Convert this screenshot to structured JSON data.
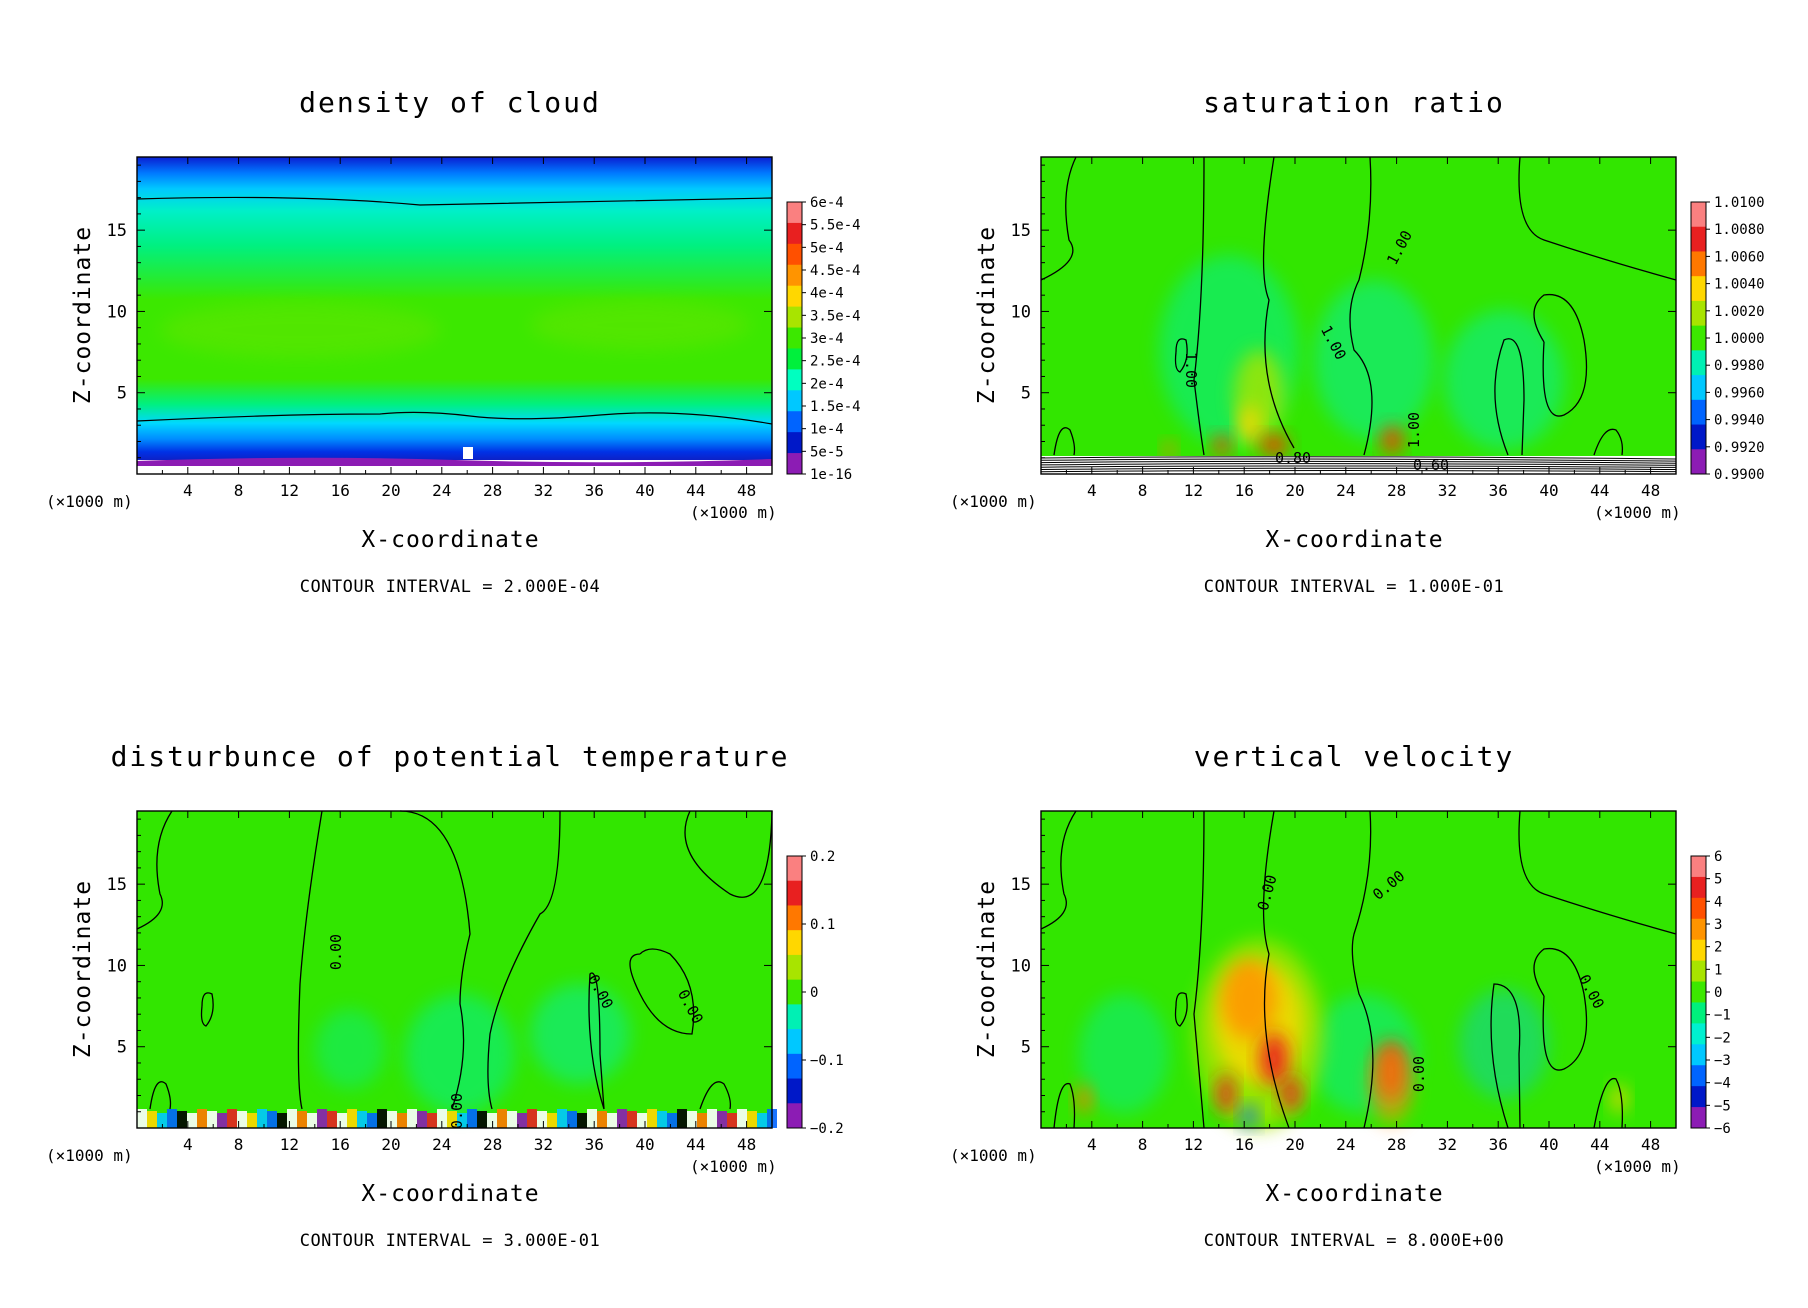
{
  "chart_data": [
    {
      "type": "heatmap",
      "title": "density of cloud",
      "xlabel": "X-coordinate",
      "ylabel": "Z-coordinate",
      "x_unit": "(×1000 m)",
      "x_ticks": [
        "4",
        "8",
        "12",
        "16",
        "20",
        "24",
        "28",
        "32",
        "36",
        "40",
        "44",
        "48"
      ],
      "y_ticks": [
        "5",
        "10",
        "15"
      ],
      "xlim": [
        0,
        50
      ],
      "ylim": [
        0,
        19.5
      ],
      "contour_interval": "CONTOUR INTERVAL = 2.000E-04",
      "colorbar": {
        "labels": [
          "6e-4",
          "5.5e-4",
          "5e-4",
          "4.5e-4",
          "4e-4",
          "3.5e-4",
          "3e-4",
          "2.5e-4",
          "2e-4",
          "1.5e-4",
          "1e-4",
          "5e-5",
          "1e-16"
        ],
        "colors": [
          "#fa8080",
          "#e82020",
          "#ff5000",
          "#ff9400",
          "#ffd700",
          "#a8e400",
          "#3ce800",
          "#00f03c",
          "#00ffc0",
          "#00c8ff",
          "#0064ff",
          "#0018c8",
          "#8c1cb4"
        ]
      },
      "contour_labels": []
    },
    {
      "type": "heatmap",
      "title": "saturation ratio",
      "xlabel": "X-coordinate",
      "ylabel": "Z-coordinate",
      "x_unit": "(×1000 m)",
      "x_ticks": [
        "4",
        "8",
        "12",
        "16",
        "20",
        "24",
        "28",
        "32",
        "36",
        "40",
        "44",
        "48"
      ],
      "y_ticks": [
        "5",
        "10",
        "15"
      ],
      "xlim": [
        0,
        50
      ],
      "ylim": [
        0,
        19.5
      ],
      "contour_interval": "CONTOUR INTERVAL = 1.000E-01",
      "colorbar": {
        "labels": [
          "1.0100",
          "1.0080",
          "1.0060",
          "1.0040",
          "1.0020",
          "1.0000",
          "0.9980",
          "0.9960",
          "0.9940",
          "0.9920",
          "0.9900"
        ],
        "colors": [
          "#fa8080",
          "#e82020",
          "#ff7800",
          "#ffd700",
          "#a8e400",
          "#3ce800",
          "#00f0b4",
          "#00c8ff",
          "#0064ff",
          "#0018c8",
          "#8c1cb4"
        ]
      },
      "contour_labels": [
        "1.00",
        "1.00",
        "1.00",
        "1.00",
        "0.80",
        "0.60"
      ]
    },
    {
      "type": "heatmap",
      "title": "disturbunce of potential temperature",
      "xlabel": "X-coordinate",
      "ylabel": "Z-coordinate",
      "x_unit": "(×1000 m)",
      "x_ticks": [
        "4",
        "8",
        "12",
        "16",
        "20",
        "24",
        "28",
        "32",
        "36",
        "40",
        "44",
        "48"
      ],
      "y_ticks": [
        "5",
        "10",
        "15"
      ],
      "xlim": [
        0,
        50
      ],
      "ylim": [
        0,
        19.5
      ],
      "contour_interval": "CONTOUR INTERVAL = 3.000E-01",
      "colorbar": {
        "labels": [
          "0.2",
          "0.1",
          "0",
          "−0.1",
          "−0.2"
        ],
        "colors": [
          "#fa8080",
          "#e82020",
          "#ff7800",
          "#ffd700",
          "#a8e400",
          "#3ce800",
          "#00f0b4",
          "#00c8ff",
          "#0064ff",
          "#0018c8",
          "#8c1cb4"
        ]
      },
      "contour_labels": [
        "0.00",
        "0.00",
        "0.00",
        "0.00"
      ]
    },
    {
      "type": "heatmap",
      "title": "vertical velocity",
      "xlabel": "X-coordinate",
      "ylabel": "Z-coordinate",
      "x_unit": "(×1000 m)",
      "x_ticks": [
        "4",
        "8",
        "12",
        "16",
        "20",
        "24",
        "28",
        "32",
        "36",
        "40",
        "44",
        "48"
      ],
      "y_ticks": [
        "5",
        "10",
        "15"
      ],
      "xlim": [
        0,
        50
      ],
      "ylim": [
        0,
        19.5
      ],
      "contour_interval": "CONTOUR INTERVAL = 8.000E+00",
      "colorbar": {
        "labels": [
          "6",
          "5",
          "4",
          "3",
          "2",
          "1",
          "0",
          "−1",
          "−2",
          "−3",
          "−4",
          "−5",
          "−6"
        ],
        "colors": [
          "#fa8080",
          "#e82020",
          "#ff5000",
          "#ff9400",
          "#ffd700",
          "#a8e400",
          "#3ce800",
          "#00f07c",
          "#00f0d0",
          "#00c8ff",
          "#0064ff",
          "#0018c8",
          "#8c1cb4"
        ]
      },
      "contour_labels": [
        "0.00",
        "0.00",
        "0.00",
        "0.00"
      ]
    }
  ]
}
